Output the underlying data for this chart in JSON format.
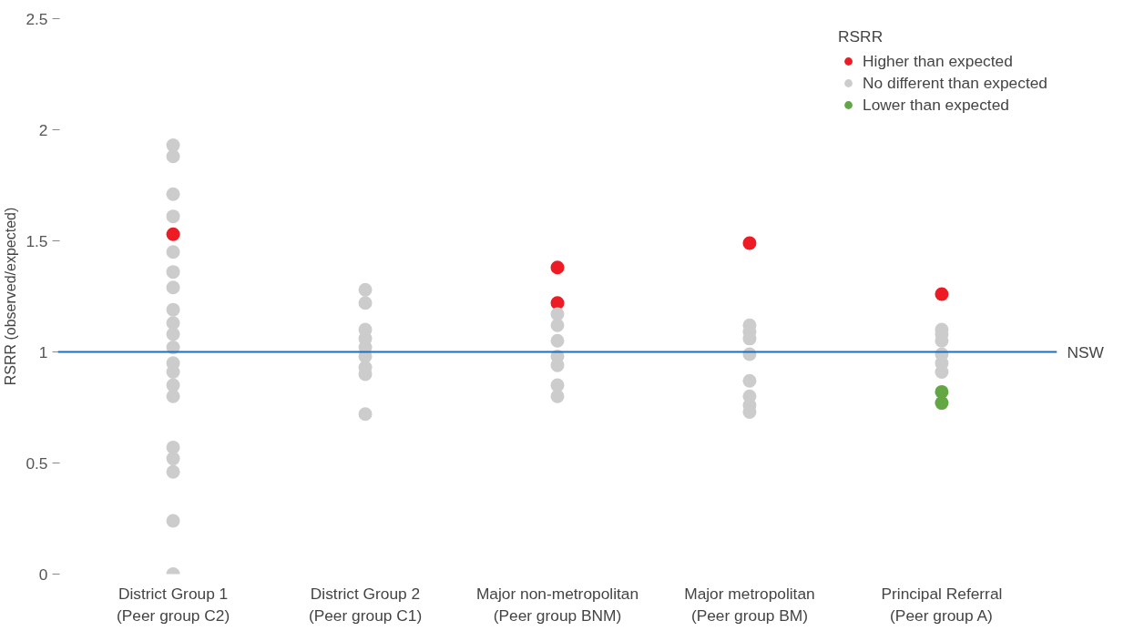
{
  "chart_data": {
    "type": "scatter",
    "ylabel": "RSRR (observed/expected)",
    "legend_title": "RSRR",
    "legend": "top right",
    "marker": "circle",
    "grid": false,
    "categories": [
      "District Group 1\n(Peer group C2)",
      "District Group 2\n(Peer group C1)",
      "Major non-metropolitan\n(Peer group BNM)",
      "Major metropolitan\n(Peer group BM)",
      "Principal Referral\n(Peer group A)"
    ],
    "ylim": [
      0,
      2.5
    ],
    "yticks": [
      0,
      {
        "value": 0.5,
        "label": "0.5"
      },
      1,
      {
        "value": 1.5,
        "label": "1.5"
      },
      2,
      {
        "value": 2.5,
        "label": "2.5"
      }
    ],
    "series": [
      {
        "name": "Higher than expected",
        "color": "#ed1c24",
        "x": [
          "District Group 1\n(Peer group C2)",
          "Major non-metropolitan\n(Peer group BNM)",
          "Major non-metropolitan\n(Peer group BNM)",
          "Major metropolitan\n(Peer group BM)",
          "Principal Referral\n(Peer group A)"
        ],
        "values": [
          1.53,
          1.38,
          1.22,
          1.49,
          1.26
        ]
      },
      {
        "name": "No different than expected",
        "color": "#cccccc",
        "x": [
          "District Group 1\n(Peer group C2)",
          "District Group 1\n(Peer group C2)",
          "District Group 1\n(Peer group C2)",
          "District Group 1\n(Peer group C2)",
          "District Group 1\n(Peer group C2)",
          "District Group 1\n(Peer group C2)",
          "District Group 1\n(Peer group C2)",
          "District Group 1\n(Peer group C2)",
          "District Group 1\n(Peer group C2)",
          "District Group 1\n(Peer group C2)",
          "District Group 1\n(Peer group C2)",
          "District Group 1\n(Peer group C2)",
          "District Group 1\n(Peer group C2)",
          "District Group 1\n(Peer group C2)",
          "District Group 1\n(Peer group C2)",
          "District Group 1\n(Peer group C2)",
          "District Group 1\n(Peer group C2)",
          "District Group 1\n(Peer group C2)",
          "District Group 1\n(Peer group C2)",
          "District Group 1\n(Peer group C2)",
          "District Group 2\n(Peer group C1)",
          "District Group 2\n(Peer group C1)",
          "District Group 2\n(Peer group C1)",
          "District Group 2\n(Peer group C1)",
          "District Group 2\n(Peer group C1)",
          "District Group 2\n(Peer group C1)",
          "District Group 2\n(Peer group C1)",
          "District Group 2\n(Peer group C1)",
          "District Group 2\n(Peer group C1)",
          "Major non-metropolitan\n(Peer group BNM)",
          "Major non-metropolitan\n(Peer group BNM)",
          "Major non-metropolitan\n(Peer group BNM)",
          "Major non-metropolitan\n(Peer group BNM)",
          "Major non-metropolitan\n(Peer group BNM)",
          "Major non-metropolitan\n(Peer group BNM)",
          "Major non-metropolitan\n(Peer group BNM)",
          "Major metropolitan\n(Peer group BM)",
          "Major metropolitan\n(Peer group BM)",
          "Major metropolitan\n(Peer group BM)",
          "Major metropolitan\n(Peer group BM)",
          "Major metropolitan\n(Peer group BM)",
          "Major metropolitan\n(Peer group BM)",
          "Major metropolitan\n(Peer group BM)",
          "Major metropolitan\n(Peer group BM)",
          "Principal Referral\n(Peer group A)",
          "Principal Referral\n(Peer group A)",
          "Principal Referral\n(Peer group A)",
          "Principal Referral\n(Peer group A)",
          "Principal Referral\n(Peer group A)",
          "Principal Referral\n(Peer group A)"
        ],
        "values": [
          1.93,
          1.88,
          1.71,
          1.61,
          1.45,
          1.36,
          1.29,
          1.19,
          1.13,
          1.08,
          1.02,
          0.95,
          0.91,
          0.85,
          0.8,
          0.57,
          0.52,
          0.46,
          0.24,
          0.0,
          1.28,
          1.22,
          1.1,
          1.06,
          1.02,
          0.98,
          0.93,
          0.9,
          0.72,
          1.17,
          1.12,
          1.05,
          0.98,
          0.94,
          0.85,
          0.8,
          1.12,
          1.09,
          1.06,
          0.99,
          0.87,
          0.8,
          0.76,
          0.73,
          1.1,
          1.08,
          1.05,
          0.99,
          0.95,
          0.91
        ]
      },
      {
        "name": "Lower than expected",
        "color": "#62a744",
        "x": [
          "Principal Referral\n(Peer group A)",
          "Principal Referral\n(Peer group A)"
        ],
        "values": [
          0.82,
          0.77
        ]
      }
    ],
    "ref_lines": [
      {
        "axis": "y",
        "value": 1,
        "label": "NSW",
        "color": "#1f6fb8",
        "line_style": "solid"
      }
    ]
  }
}
